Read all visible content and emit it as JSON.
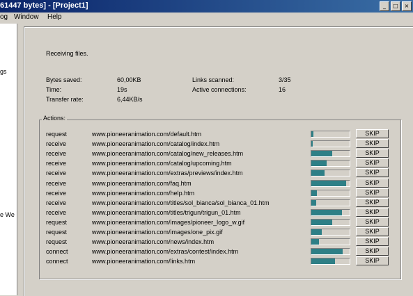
{
  "window": {
    "title": "61447 bytes] - [Project1]",
    "min_glyph": "_",
    "max_glyph": "□",
    "close_glyph": "×"
  },
  "menubar": {
    "items": [
      "og",
      "Window",
      "Help"
    ]
  },
  "left_pane": {
    "fragments": [
      "gs",
      "e We"
    ]
  },
  "status": "Receiving files.",
  "stats": {
    "bytes_saved_label": "Bytes saved:",
    "bytes_saved_value": "60,00KB",
    "time_label": "Time:",
    "time_value": "19s",
    "transfer_rate_label": "Transfer rate:",
    "transfer_rate_value": "6,44KB/s",
    "links_scanned_label": "Links scanned:",
    "links_scanned_value": "3/35",
    "active_connections_label": "Active connections:",
    "active_connections_value": "16"
  },
  "actions": {
    "legend": "Actions:",
    "skip_label": "SKIP",
    "rows": [
      {
        "type": "request",
        "url": "www.pioneeranimation.com/default.htm",
        "progress": 0.05
      },
      {
        "type": "receive",
        "url": "www.pioneeranimation.com/catalog/index.htm",
        "progress": 0.03
      },
      {
        "type": "receive",
        "url": "www.pioneeranimation.com/catalog/new_releases.htm",
        "progress": 0.55
      },
      {
        "type": "receive",
        "url": "www.pioneeranimation.com/catalog/upcoming.htm",
        "progress": 0.4
      },
      {
        "type": "receive",
        "url": "www.pioneeranimation.com/extras/previews/index.htm",
        "progress": 0.35
      },
      {
        "type": "receive",
        "url": "www.pioneeranimation.com/faq.htm",
        "progress": 0.9
      },
      {
        "type": "receive",
        "url": "www.pioneeranimation.com/help.htm",
        "progress": 0.15
      },
      {
        "type": "receive",
        "url": "www.pioneeranimation.com/titles/sol_bianca/sol_bianca_01.htm",
        "progress": 0.12
      },
      {
        "type": "receive",
        "url": "www.pioneeranimation.com/titles/trigun/trigun_01.htm",
        "progress": 0.8
      },
      {
        "type": "request",
        "url": "www.pioneeranimation.com/images/pioneer_logo_w.gif",
        "progress": 0.55
      },
      {
        "type": "request",
        "url": "www.pioneeranimation.com/images/one_pix.gif",
        "progress": 0.28
      },
      {
        "type": "request",
        "url": "www.pioneeranimation.com/news/index.htm",
        "progress": 0.2
      },
      {
        "type": "connect",
        "url": "www.pioneeranimation.com/extras/contest/index.htm",
        "progress": 0.82
      },
      {
        "type": "connect",
        "url": "www.pioneeranimation.com/links.htm",
        "progress": 0.62
      }
    ]
  },
  "colors": {
    "progress_fill": "#2e7f86",
    "titlebar": "#0a246a"
  }
}
